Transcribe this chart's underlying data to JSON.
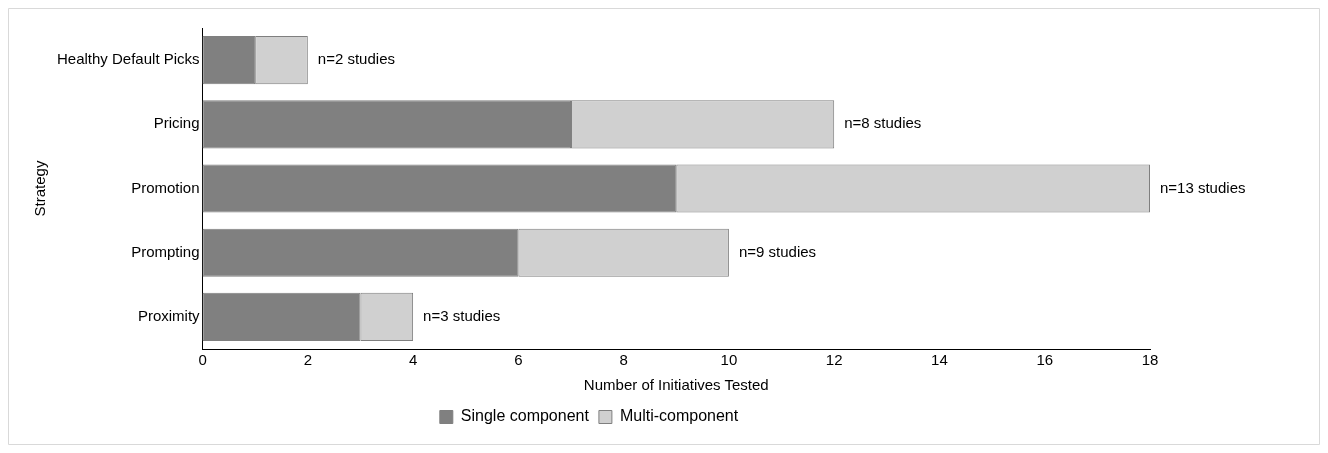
{
  "chart_data": {
    "type": "bar",
    "orientation": "horizontal",
    "stacked": true,
    "xlabel": "Number of Initiatives Tested",
    "ylabel": "Strategy",
    "categories": [
      "Healthy Default Picks",
      "Pricing",
      "Promotion",
      "Prompting",
      "Proximity"
    ],
    "series": [
      {
        "name": "Single component",
        "color": "#808080",
        "values": [
          1,
          7,
          9,
          6,
          3
        ]
      },
      {
        "name": "Multi-component",
        "color": "#d0d0d0",
        "values": [
          1,
          5,
          9,
          4,
          1
        ]
      }
    ],
    "xlim": [
      0,
      18
    ],
    "xticks": [
      0,
      2,
      4,
      6,
      8,
      10,
      12,
      14,
      16,
      18
    ],
    "grid": false,
    "legend": "bottom",
    "annotations": [
      {
        "text": "n=2 studies",
        "x": 2,
        "y": "Healthy Default Picks"
      },
      {
        "text": "n=8 studies",
        "x": 12,
        "y": "Pricing"
      },
      {
        "text": "n=13 studies",
        "x": 18,
        "y": "Promotion"
      },
      {
        "text": "n=9 studies",
        "x": 10,
        "y": "Prompting"
      },
      {
        "text": "n=3 studies",
        "x": 4,
        "y": "Proximity"
      }
    ]
  }
}
